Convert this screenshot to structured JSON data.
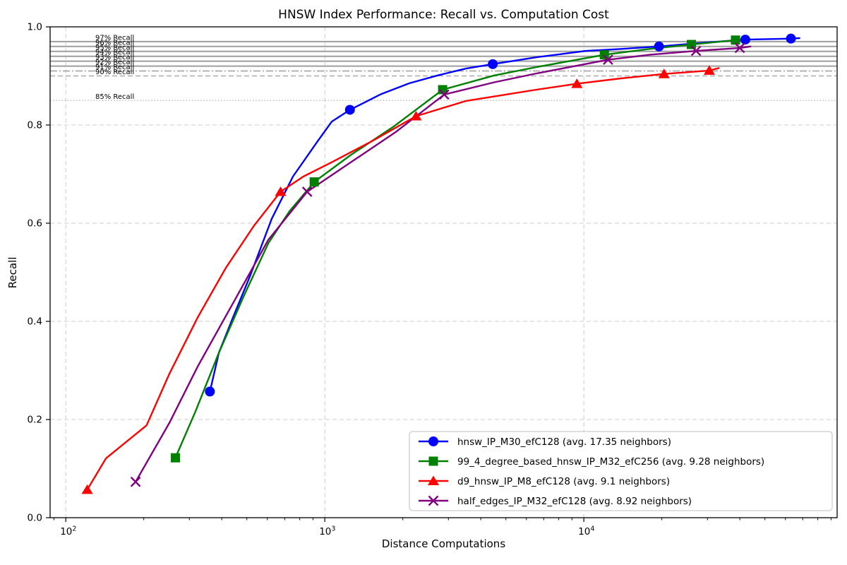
{
  "chart_data": {
    "type": "line",
    "title": "HNSW Index Performance: Recall vs. Computation Cost",
    "xlabel": "Distance Computations",
    "ylabel": "Recall",
    "x_scale": "log",
    "xlim": [
      87,
      95000
    ],
    "ylim": [
      0.0,
      1.0
    ],
    "grid": true,
    "legend_position": "lower right",
    "x_ticks": [
      {
        "value": 100,
        "base": "10",
        "exp": "2"
      },
      {
        "value": 1000,
        "base": "10",
        "exp": "3"
      },
      {
        "value": 10000,
        "base": "10",
        "exp": "4"
      }
    ],
    "y_ticks": [
      {
        "value": 0.0,
        "label": "0.0"
      },
      {
        "value": 0.2,
        "label": "0.2"
      },
      {
        "value": 0.4,
        "label": "0.4"
      },
      {
        "value": 0.6,
        "label": "0.6"
      },
      {
        "value": 0.8,
        "label": "0.8"
      },
      {
        "value": 1.0,
        "label": "1.0"
      }
    ],
    "reference_lines": [
      {
        "value": 0.97,
        "label": "97% Recall",
        "style": "solid",
        "color": "#9e9e9e"
      },
      {
        "value": 0.96,
        "label": "96% Recall",
        "style": "solid",
        "color": "#9e9e9e"
      },
      {
        "value": 0.95,
        "label": "95% Recall",
        "style": "solid",
        "color": "#9e9e9e"
      },
      {
        "value": 0.94,
        "label": "94% Recall",
        "style": "solid",
        "color": "#9e9e9e"
      },
      {
        "value": 0.93,
        "label": "93% Recall",
        "style": "solid",
        "color": "#9e9e9e"
      },
      {
        "value": 0.92,
        "label": "92% Recall",
        "style": "solid",
        "color": "#9e9e9e"
      },
      {
        "value": 0.91,
        "label": "91% Recall",
        "style": "dashdot",
        "color": "#9e9e9e"
      },
      {
        "value": 0.9,
        "label": "90% Recall",
        "style": "dashed",
        "color": "#ababab"
      },
      {
        "value": 0.85,
        "label": "85% Recall",
        "style": "dotted",
        "color": "#c0c0c0"
      }
    ],
    "series": [
      {
        "name": "hnsw_IP_M30_efC128 (avg. 17.35 neighbors)",
        "color": "#0000ff",
        "marker": "circle",
        "points": [
          [
            360,
            0.257
          ],
          [
            1250,
            0.831
          ],
          [
            4450,
            0.924
          ],
          [
            19500,
            0.96
          ],
          [
            42000,
            0.974
          ],
          [
            63000,
            0.976
          ]
        ],
        "curve": [
          [
            360,
            0.257
          ],
          [
            390,
            0.336
          ],
          [
            442,
            0.408
          ],
          [
            516,
            0.494
          ],
          [
            624,
            0.609
          ],
          [
            753,
            0.695
          ],
          [
            938,
            0.767
          ],
          [
            1064,
            0.807
          ],
          [
            1250,
            0.831
          ],
          [
            1650,
            0.863
          ],
          [
            2120,
            0.885
          ],
          [
            2725,
            0.901
          ],
          [
            3505,
            0.915
          ],
          [
            4450,
            0.924
          ],
          [
            6560,
            0.938
          ],
          [
            10180,
            0.951
          ],
          [
            13930,
            0.955
          ],
          [
            19500,
            0.96
          ],
          [
            29560,
            0.968
          ],
          [
            42000,
            0.974
          ],
          [
            63000,
            0.976
          ],
          [
            68000,
            0.977
          ]
        ]
      },
      {
        "name": "99_4_degree_based_hnsw_IP_M32_efC256 (avg. 9.28 neighbors)",
        "color": "#008000",
        "marker": "square",
        "points": [
          [
            265,
            0.122
          ],
          [
            910,
            0.684
          ],
          [
            2850,
            0.872
          ],
          [
            12000,
            0.943
          ],
          [
            26000,
            0.964
          ],
          [
            38500,
            0.973
          ]
        ],
        "curve": [
          [
            265,
            0.122
          ],
          [
            317,
            0.217
          ],
          [
            390,
            0.336
          ],
          [
            486,
            0.451
          ],
          [
            605,
            0.559
          ],
          [
            730,
            0.624
          ],
          [
            910,
            0.684
          ],
          [
            1260,
            0.739
          ],
          [
            1835,
            0.796
          ],
          [
            2850,
            0.872
          ],
          [
            4510,
            0.901
          ],
          [
            6560,
            0.918
          ],
          [
            12000,
            0.943
          ],
          [
            17900,
            0.955
          ],
          [
            26000,
            0.964
          ],
          [
            38500,
            0.973
          ]
        ]
      },
      {
        "name": "d9_hnsw_IP_M8_efC128 (avg. 9.1 neighbors)",
        "color": "#ff0000",
        "marker": "triangle-up",
        "points": [
          [
            121,
            0.057
          ],
          [
            675,
            0.664
          ],
          [
            2250,
            0.818
          ],
          [
            9400,
            0.884
          ],
          [
            20400,
            0.904
          ],
          [
            30500,
            0.911
          ]
        ],
        "curve": [
          [
            121,
            0.057
          ],
          [
            143,
            0.121
          ],
          [
            205,
            0.188
          ],
          [
            251,
            0.293
          ],
          [
            323,
            0.408
          ],
          [
            415,
            0.509
          ],
          [
            533,
            0.595
          ],
          [
            675,
            0.664
          ],
          [
            826,
            0.695
          ],
          [
            1062,
            0.724
          ],
          [
            1520,
            0.767
          ],
          [
            2250,
            0.818
          ],
          [
            3510,
            0.849
          ],
          [
            6560,
            0.872
          ],
          [
            9400,
            0.884
          ],
          [
            13900,
            0.895
          ],
          [
            20400,
            0.904
          ],
          [
            30500,
            0.911
          ],
          [
            33200,
            0.916
          ]
        ]
      },
      {
        "name": "half_edges_IP_M32_efC128 (avg. 8.92 neighbors)",
        "color": "#800080",
        "marker": "x",
        "points": [
          [
            186,
            0.073
          ],
          [
            855,
            0.664
          ],
          [
            2890,
            0.862
          ],
          [
            12400,
            0.933
          ],
          [
            27100,
            0.951
          ],
          [
            40000,
            0.957
          ]
        ],
        "curve": [
          [
            186,
            0.073
          ],
          [
            251,
            0.193
          ],
          [
            323,
            0.308
          ],
          [
            442,
            0.437
          ],
          [
            605,
            0.566
          ],
          [
            855,
            0.664
          ],
          [
            1260,
            0.724
          ],
          [
            1870,
            0.785
          ],
          [
            2890,
            0.862
          ],
          [
            4510,
            0.887
          ],
          [
            6560,
            0.905
          ],
          [
            12400,
            0.933
          ],
          [
            17900,
            0.943
          ],
          [
            27100,
            0.951
          ],
          [
            40000,
            0.957
          ],
          [
            44000,
            0.96
          ]
        ]
      }
    ]
  }
}
